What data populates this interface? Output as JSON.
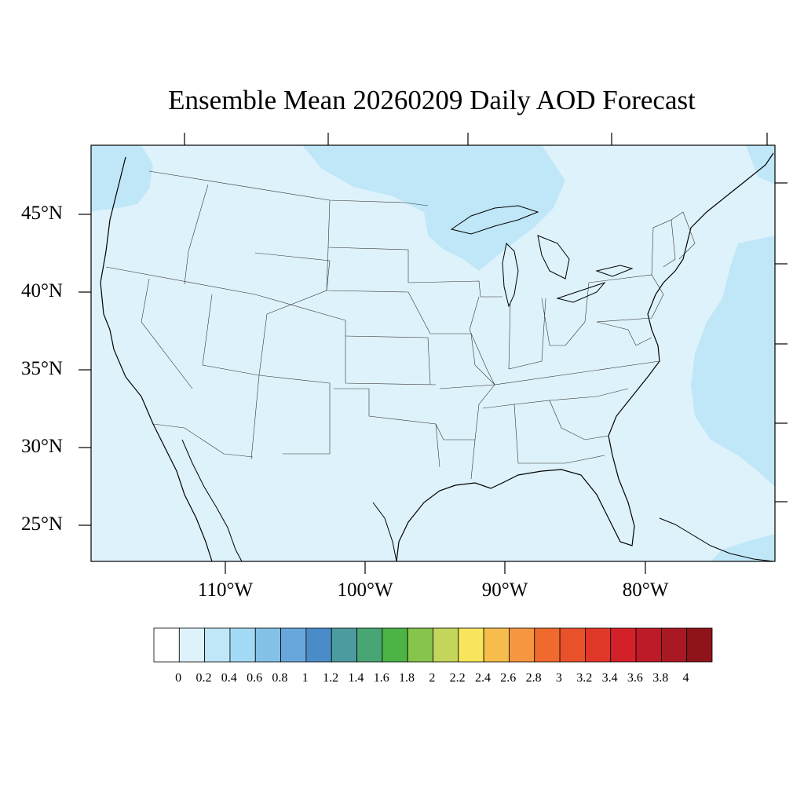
{
  "title": "Ensemble Mean 20260209 Daily AOD Forecast",
  "lat_labels": [
    "45°N",
    "40°N",
    "35°N",
    "30°N",
    "25°N"
  ],
  "lon_labels": [
    "110°W",
    "100°W",
    "90°W",
    "80°W"
  ],
  "colorbar": {
    "labels": [
      "0",
      "0.2",
      "0.4",
      "0.6",
      "0.8",
      "1",
      "1.2",
      "1.4",
      "1.6",
      "1.8",
      "2",
      "2.2",
      "2.4",
      "2.6",
      "2.8",
      "3",
      "3.2",
      "3.4",
      "3.6",
      "3.8",
      "4"
    ],
    "colors": [
      "#ffffff",
      "#def2fb",
      "#bfe7f8",
      "#a2d9f4",
      "#84c1e6",
      "#68a7dc",
      "#4a8cc8",
      "#4b9b9f",
      "#47a673",
      "#4bb444",
      "#87c44c",
      "#c3d55a",
      "#f7e55b",
      "#f6bd4d",
      "#f69640",
      "#f06a2d",
      "#e9512b",
      "#e03728",
      "#d3212a",
      "#bd1b27",
      "#a91923",
      "#8e1419"
    ]
  },
  "map": {
    "lat_range": [
      22.8,
      49.5
    ],
    "lon_range": [
      -119,
      -70
    ],
    "background_aod_class": "0.2",
    "colors": {
      "land_fill": "#def2fb",
      "elevated_fill": "#bfe7f8",
      "outline": "#000000"
    }
  }
}
